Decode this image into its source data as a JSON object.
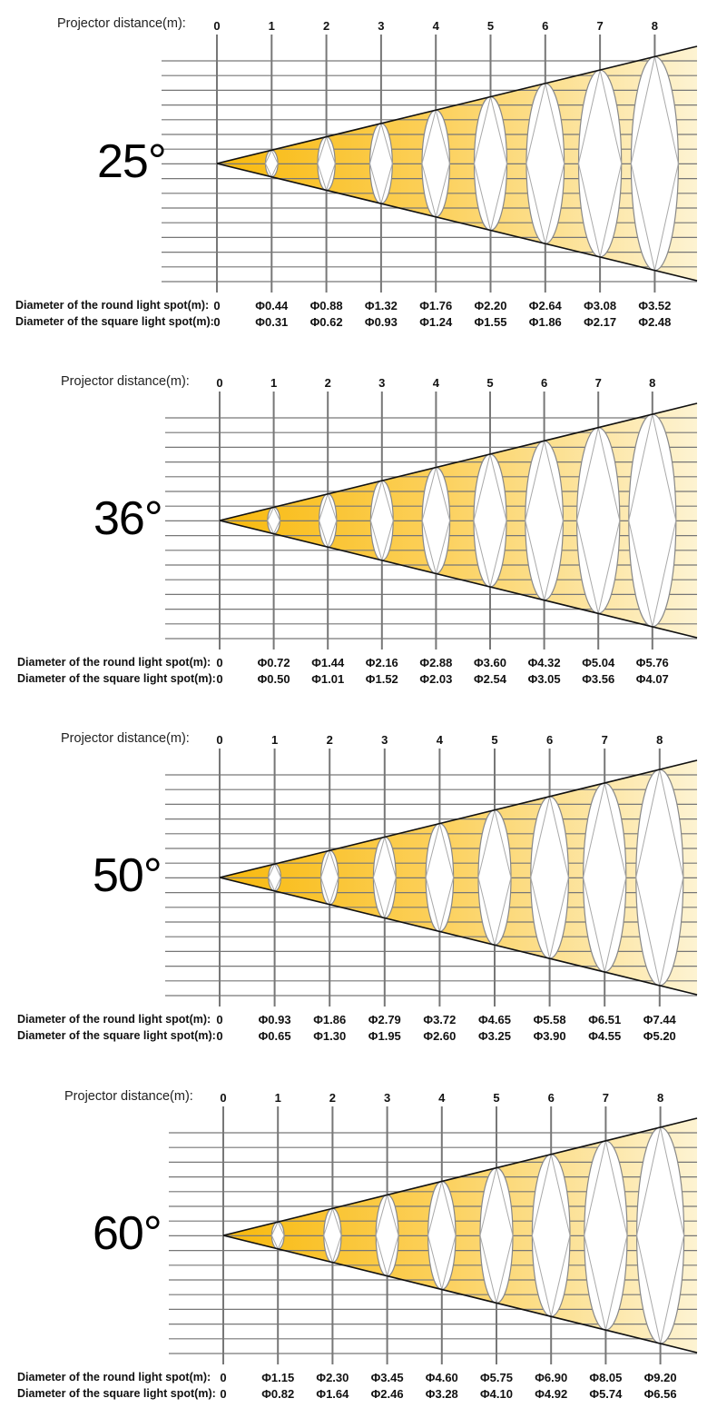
{
  "labels": {
    "distance": "Projector distance(m):",
    "round": "Diameter of the round light spot(m):",
    "square": "Diameter of the square light spot(m):"
  },
  "distances": [
    "0",
    "1",
    "2",
    "3",
    "4",
    "5",
    "6",
    "7",
    "8"
  ],
  "colors": {
    "dark": "#f8b90c",
    "light": "#fdf3d2",
    "grid": "#777777",
    "line": "#111111"
  },
  "panels": [
    {
      "angle": "25°",
      "round": [
        "0",
        "Φ0.44",
        "Φ0.88",
        "Φ1.32",
        "Φ1.76",
        "Φ2.20",
        "Φ2.64",
        "Φ3.08",
        "Φ3.52"
      ],
      "square": [
        "0",
        "Φ0.31",
        "Φ0.62",
        "Φ0.93",
        "Φ1.24",
        "Φ1.55",
        "Φ1.86",
        "Φ2.17",
        "Φ2.48"
      ]
    },
    {
      "angle": "36°",
      "round": [
        "0",
        "Φ0.72",
        "Φ1.44",
        "Φ2.16",
        "Φ2.88",
        "Φ3.60",
        "Φ4.32",
        "Φ5.04",
        "Φ5.76"
      ],
      "square": [
        "0",
        "Φ0.50",
        "Φ1.01",
        "Φ1.52",
        "Φ2.03",
        "Φ2.54",
        "Φ3.05",
        "Φ3.56",
        "Φ4.07"
      ]
    },
    {
      "angle": "50°",
      "round": [
        "0",
        "Φ0.93",
        "Φ1.86",
        "Φ2.79",
        "Φ3.72",
        "Φ4.65",
        "Φ5.58",
        "Φ6.51",
        "Φ7.44"
      ],
      "square": [
        "0",
        "Φ0.65",
        "Φ1.30",
        "Φ1.95",
        "Φ2.60",
        "Φ3.25",
        "Φ3.90",
        "Φ4.55",
        "Φ5.20"
      ]
    },
    {
      "angle": "60°",
      "round": [
        "0",
        "Φ1.15",
        "Φ2.30",
        "Φ3.45",
        "Φ4.60",
        "Φ5.75",
        "Φ6.90",
        "Φ8.05",
        "Φ9.20"
      ],
      "square": [
        "0",
        "Φ0.82",
        "Φ1.64",
        "Φ2.46",
        "Φ3.28",
        "Φ4.10",
        "Φ4.92",
        "Φ5.74",
        "Φ6.56"
      ]
    }
  ]
}
